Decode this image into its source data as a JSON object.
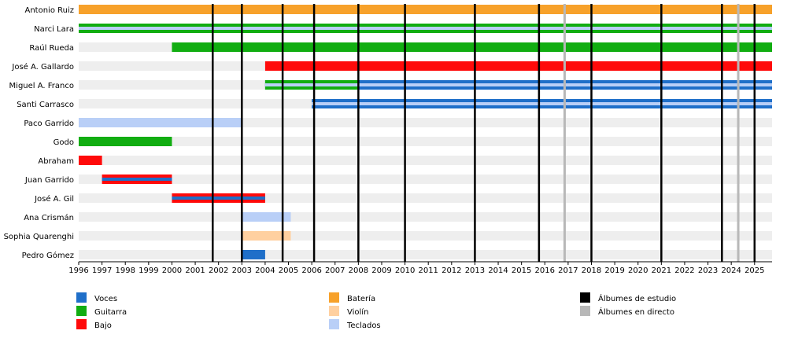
{
  "chart_data": {
    "type": "timeline",
    "x_range": [
      1996,
      2025.75
    ],
    "x_ticks": [
      "1996",
      "1997",
      "1998",
      "1999",
      "2000",
      "2001",
      "2002",
      "2003",
      "2004",
      "2005",
      "2006",
      "2007",
      "2008",
      "2009",
      "2010",
      "2011",
      "2012",
      "2013",
      "2014",
      "2015",
      "2016",
      "2017",
      "2018",
      "2019",
      "2020",
      "2021",
      "2022",
      "2023",
      "2024",
      "2025"
    ],
    "members": [
      {
        "name": "Antonio Ruiz",
        "bars": [
          {
            "role": "bateria",
            "start": 1996,
            "end": 2025.75
          }
        ]
      },
      {
        "name": "Narci Lara",
        "bars": [
          {
            "role": "guitarra",
            "start": 1996,
            "end": 2025.75,
            "accent": "teclados"
          }
        ]
      },
      {
        "name": "Raúl Rueda",
        "bars": [
          {
            "role": "guitarra",
            "start": 2000,
            "end": 2025.75
          }
        ]
      },
      {
        "name": "José A. Gallardo",
        "bars": [
          {
            "role": "bajo",
            "start": 2004,
            "end": 2025.75
          }
        ]
      },
      {
        "name": "Miguel A. Franco",
        "bars": [
          {
            "role": "voces",
            "start": 2004,
            "end": 2025.75,
            "accent": "teclados"
          },
          {
            "role": "guitarra",
            "start": 2004,
            "end": 2008,
            "accent": "teclados"
          }
        ]
      },
      {
        "name": "Santi Carrasco",
        "bars": [
          {
            "role": "voces",
            "start": 2006,
            "end": 2025.75,
            "accent": "teclados"
          }
        ]
      },
      {
        "name": "Paco Garrido",
        "bars": [
          {
            "role": "teclados",
            "start": 1996,
            "end": 2003
          }
        ]
      },
      {
        "name": "Godo",
        "bars": [
          {
            "role": "guitarra",
            "start": 1996,
            "end": 2000
          }
        ]
      },
      {
        "name": "Abraham",
        "bars": [
          {
            "role": "bajo",
            "start": 1996,
            "end": 1997
          }
        ]
      },
      {
        "name": "Juan Garrido",
        "bars": [
          {
            "role": "bajo",
            "start": 1997,
            "end": 2000,
            "accent": "voces"
          }
        ]
      },
      {
        "name": "José A. Gil",
        "bars": [
          {
            "role": "bajo",
            "start": 2000,
            "end": 2004,
            "accent": "voces"
          }
        ]
      },
      {
        "name": "Ana Crismán",
        "bars": [
          {
            "role": "teclados",
            "start": 2003,
            "end": 2005.1
          }
        ]
      },
      {
        "name": "Sophia Quarenghi",
        "bars": [
          {
            "role": "violin",
            "start": 2003,
            "end": 2005.1
          }
        ]
      },
      {
        "name": "Pedro Gómez",
        "bars": [
          {
            "role": "voces",
            "start": 2003,
            "end": 2004
          }
        ]
      }
    ],
    "studio_albums": [
      2001.75,
      2003,
      2004.75,
      2006.1,
      2008,
      2010,
      2013,
      2015.75,
      2018,
      2021,
      2023.6,
      2025
    ],
    "live_albums": [
      2016.85,
      2024.3
    ],
    "legend": [
      {
        "key": "voces",
        "label": "Voces",
        "color": "#1f6fc9"
      },
      {
        "key": "guitarra",
        "label": "Guitarra",
        "color": "#11ad11"
      },
      {
        "key": "bajo",
        "label": "Bajo",
        "color": "#ff0a0a"
      },
      {
        "key": "bateria",
        "label": "Batería",
        "color": "#f7a12a"
      },
      {
        "key": "violin",
        "label": "Violín",
        "color": "#ffd0a0"
      },
      {
        "key": "teclados",
        "label": "Teclados",
        "color": "#b9cff7"
      },
      {
        "key": "studio",
        "label": "Álbumes de estudio",
        "color": "#000000"
      },
      {
        "key": "live",
        "label": "Álbumes en directo",
        "color": "#b8b8b8"
      }
    ]
  }
}
